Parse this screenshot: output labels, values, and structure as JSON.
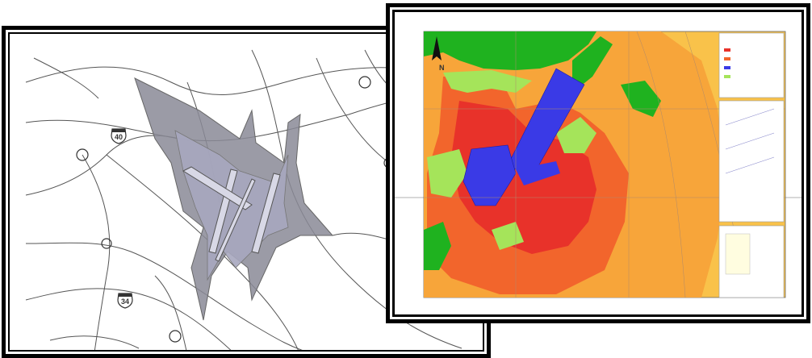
{
  "left_map": {
    "shield_top": "40",
    "shield_bottom": "34"
  },
  "right_map": {
    "north_label": "N",
    "colors": {
      "green": "#1fb21f",
      "light_green": "#a5e45a",
      "blue": "#3a3ae6",
      "red": "#e8322a",
      "orange_red": "#f2652c",
      "orange": "#f7a53a",
      "yellow_orange": "#f9c24a"
    },
    "legend_items": [
      "",
      "",
      "",
      ""
    ]
  }
}
